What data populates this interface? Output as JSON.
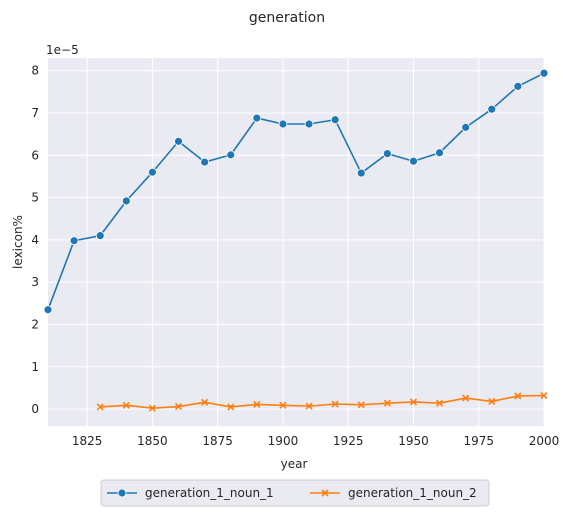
{
  "chart_data": {
    "type": "line",
    "title": "generation",
    "xlabel": "year",
    "ylabel": "lexicon%",
    "y_offset_label": "1e−5",
    "xlim": [
      1810,
      2000
    ],
    "ylim": [
      -0.4,
      8.3
    ],
    "x_ticks": [
      1825,
      1850,
      1875,
      1900,
      1925,
      1950,
      1975,
      2000
    ],
    "y_ticks": [
      0,
      1,
      2,
      3,
      4,
      5,
      6,
      7,
      8
    ],
    "grid": true,
    "background": "#EAEAF2",
    "legend_position": "bottom-center",
    "series": [
      {
        "name": "generation_1_noun_1",
        "color": "#1f77b4",
        "marker": "circle",
        "x": [
          1810,
          1820,
          1830,
          1840,
          1850,
          1860,
          1870,
          1880,
          1890,
          1900,
          1910,
          1920,
          1930,
          1940,
          1950,
          1960,
          1970,
          1980,
          1990,
          2000
        ],
        "y": [
          2.35,
          3.98,
          4.1,
          4.92,
          5.6,
          6.33,
          5.84,
          6.01,
          6.88,
          6.74,
          6.74,
          6.84,
          5.58,
          6.04,
          5.86,
          6.06,
          6.66,
          7.09,
          7.63,
          7.94
        ]
      },
      {
        "name": "generation_1_noun_2",
        "color": "#ff7f0e",
        "marker": "x",
        "x": [
          1830,
          1840,
          1850,
          1860,
          1870,
          1880,
          1890,
          1900,
          1910,
          1920,
          1930,
          1940,
          1950,
          1960,
          1970,
          1980,
          1990,
          2000
        ],
        "y": [
          0.05,
          0.09,
          0.02,
          0.06,
          0.16,
          0.05,
          0.11,
          0.09,
          0.07,
          0.12,
          0.1,
          0.14,
          0.17,
          0.14,
          0.26,
          0.18,
          0.31,
          0.32
        ]
      }
    ]
  }
}
